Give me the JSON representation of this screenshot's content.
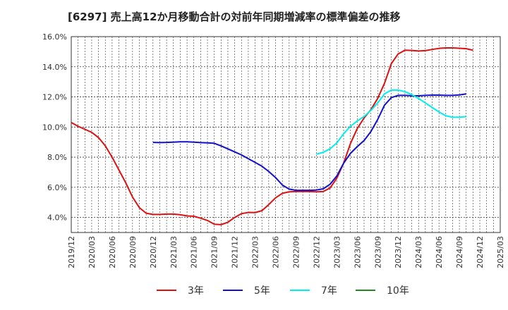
{
  "chart_data": {
    "type": "line",
    "title": "[6297]  売上高12か月移動合計の対前年同期増減率の標準偏差の推移",
    "xlabel": "",
    "ylabel": "",
    "ylim": [
      3.0,
      16.0
    ],
    "yticks": [
      4.0,
      6.0,
      8.0,
      10.0,
      12.0,
      14.0,
      16.0
    ],
    "ytick_labels": [
      "4.0%",
      "6.0%",
      "8.0%",
      "10.0%",
      "12.0%",
      "14.0%",
      "16.0%"
    ],
    "x_start": "2019/12",
    "x_end": "2025/03",
    "xtick_labels": [
      "2019/12",
      "2020/03",
      "2020/06",
      "2020/09",
      "2020/12",
      "2021/03",
      "2021/06",
      "2021/09",
      "2021/12",
      "2022/03",
      "2022/06",
      "2022/09",
      "2022/12",
      "2023/03",
      "2023/06",
      "2023/09",
      "2023/12",
      "2024/03",
      "2024/06",
      "2024/09",
      "2024/12",
      "2025/03"
    ],
    "grid": true,
    "legend_position": "bottom",
    "series": [
      {
        "name": "3年",
        "color": "#dd1111",
        "start": "2019/12",
        "values": [
          10.3,
          10.05,
          9.85,
          9.65,
          9.3,
          8.75,
          8.0,
          7.15,
          6.3,
          5.35,
          4.65,
          4.28,
          4.2,
          4.2,
          4.22,
          4.22,
          4.18,
          4.1,
          4.08,
          3.95,
          3.8,
          3.55,
          3.52,
          3.68,
          4.0,
          4.25,
          4.33,
          4.32,
          4.45,
          4.85,
          5.3,
          5.6,
          5.7,
          5.72,
          5.72,
          5.72,
          5.7,
          5.72,
          5.95,
          6.6,
          7.6,
          8.9,
          9.9,
          10.6,
          11.15,
          11.9,
          12.9,
          14.2,
          14.85,
          15.1,
          15.08,
          15.05,
          15.07,
          15.15,
          15.22,
          15.25,
          15.25,
          15.23,
          15.2,
          15.1
        ]
      },
      {
        "name": "5年",
        "color": "#1111cc",
        "start": "2020/12",
        "values": [
          8.98,
          8.97,
          8.98,
          9.0,
          9.02,
          9.02,
          9.0,
          8.97,
          8.95,
          8.92,
          8.75,
          8.55,
          8.35,
          8.15,
          7.9,
          7.65,
          7.4,
          7.05,
          6.65,
          6.15,
          5.88,
          5.8,
          5.8,
          5.8,
          5.82,
          5.9,
          6.2,
          6.75,
          7.6,
          8.25,
          8.7,
          9.1,
          9.7,
          10.5,
          11.45,
          11.95,
          12.1,
          12.1,
          12.08,
          12.07,
          12.1,
          12.12,
          12.12,
          12.1,
          12.1,
          12.13,
          12.2
        ]
      },
      {
        "name": "7年",
        "color": "#00eeee",
        "start": "2022/12",
        "values": [
          8.2,
          8.32,
          8.55,
          8.95,
          9.55,
          10.05,
          10.4,
          10.7,
          11.1,
          11.6,
          12.2,
          12.45,
          12.45,
          12.35,
          12.15,
          11.9,
          11.6,
          11.3,
          11.0,
          10.75,
          10.65,
          10.65,
          10.7
        ]
      },
      {
        "name": "10年",
        "color": "#228822",
        "start": "2025/03",
        "values": []
      }
    ]
  }
}
